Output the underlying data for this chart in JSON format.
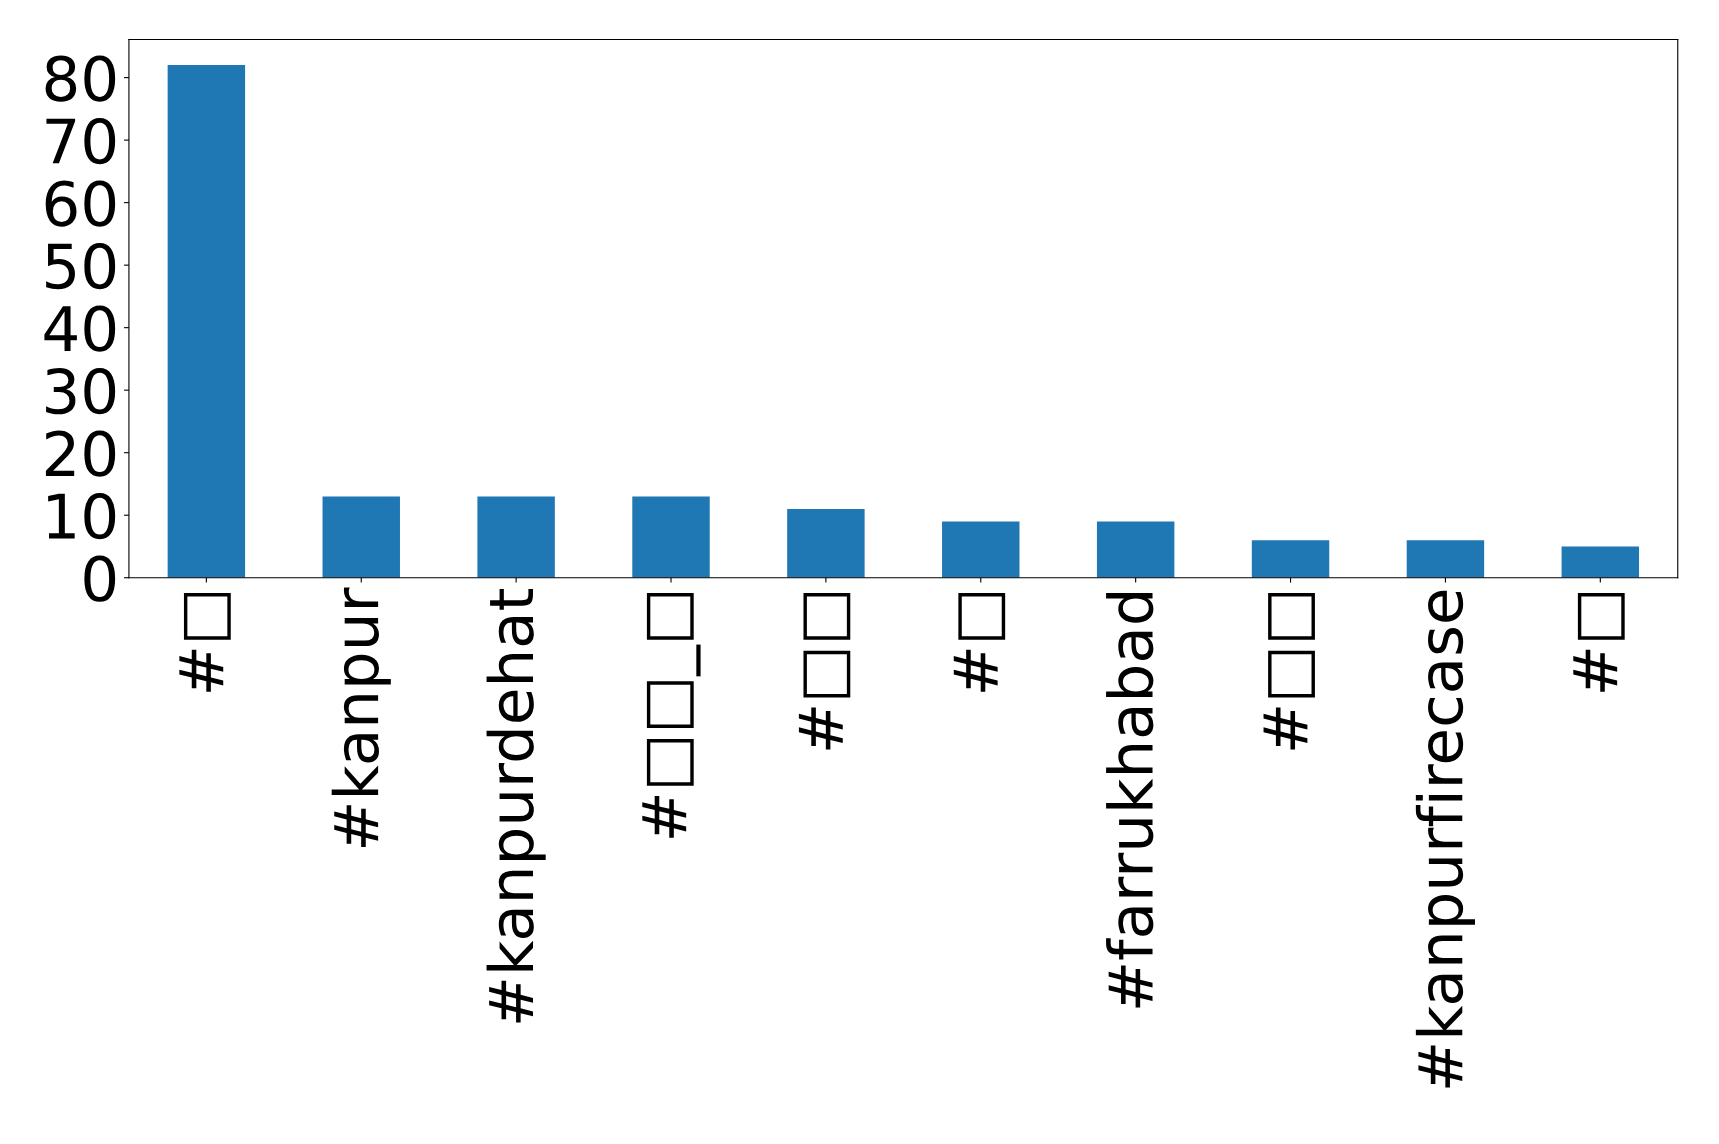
{
  "chart_data": {
    "type": "bar",
    "categories": [
      "#□",
      "#kanpur",
      "#kanpurdehat",
      "#□□_□",
      "#□□",
      "#□",
      "#farrukhabad",
      "#□□",
      "#kanpurfirecase",
      "#□"
    ],
    "values": [
      82,
      13,
      13,
      13,
      11,
      9,
      9,
      6,
      6,
      5
    ],
    "color": "#1f77b4",
    "ylim": [
      0,
      86.1
    ],
    "yticks": [
      0,
      10,
      20,
      30,
      40,
      50,
      60,
      70,
      80
    ],
    "grid": false
  }
}
